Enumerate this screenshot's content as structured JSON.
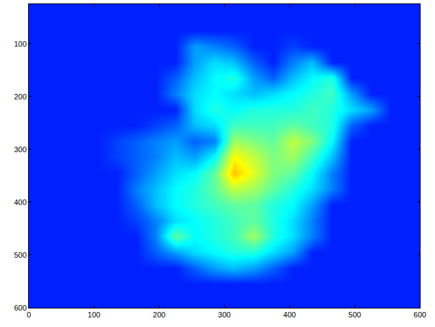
{
  "chart_data": {
    "type": "heatmap",
    "x": [
      15,
      45,
      75,
      105,
      135,
      165,
      195,
      225,
      255,
      285,
      315,
      345,
      375,
      405,
      435,
      465,
      495,
      525,
      555,
      585
    ],
    "y": [
      15,
      45,
      75,
      105,
      135,
      165,
      195,
      225,
      255,
      285,
      315,
      345,
      375,
      405,
      435,
      465,
      495,
      525,
      555,
      585
    ],
    "z": [
      [
        10,
        10,
        10,
        10,
        10,
        10,
        10,
        10,
        10,
        10,
        10,
        10,
        10,
        10,
        10,
        10,
        10,
        10,
        10,
        10
      ],
      [
        10,
        10,
        10,
        10,
        10,
        10,
        10,
        10,
        10,
        10,
        10,
        10,
        10,
        10,
        10,
        10,
        10,
        10,
        10,
        10
      ],
      [
        10,
        10,
        10,
        10,
        10,
        10,
        10,
        10,
        10,
        10,
        10,
        10,
        10,
        10,
        10,
        10,
        10,
        10,
        10,
        10
      ],
      [
        10,
        10,
        10,
        10,
        10,
        10,
        10,
        10,
        18,
        16,
        14,
        10,
        10,
        12,
        10,
        10,
        10,
        10,
        10,
        10
      ],
      [
        10,
        10,
        10,
        10,
        10,
        10,
        10,
        10,
        18,
        22,
        20,
        14,
        10,
        16,
        20,
        10,
        10,
        10,
        10,
        10
      ],
      [
        10,
        10,
        10,
        10,
        10,
        10,
        10,
        14,
        20,
        24,
        26,
        18,
        14,
        20,
        24,
        26,
        10,
        10,
        10,
        10
      ],
      [
        10,
        10,
        10,
        10,
        10,
        10,
        10,
        16,
        22,
        24,
        22,
        20,
        22,
        24,
        26,
        28,
        18,
        10,
        10,
        10
      ],
      [
        10,
        10,
        10,
        10,
        10,
        10,
        10,
        10,
        22,
        26,
        24,
        26,
        26,
        26,
        28,
        26,
        22,
        18,
        10,
        10
      ],
      [
        10,
        10,
        10,
        10,
        10,
        10,
        12,
        14,
        20,
        22,
        28,
        28,
        28,
        30,
        28,
        26,
        14,
        10,
        10,
        10
      ],
      [
        10,
        10,
        10,
        10,
        12,
        14,
        16,
        18,
        14,
        16,
        34,
        32,
        30,
        36,
        32,
        24,
        10,
        10,
        10,
        10
      ],
      [
        10,
        10,
        10,
        10,
        12,
        14,
        16,
        20,
        18,
        24,
        40,
        36,
        32,
        34,
        28,
        20,
        10,
        10,
        10,
        10
      ],
      [
        10,
        10,
        10,
        10,
        10,
        14,
        18,
        22,
        24,
        30,
        44,
        38,
        32,
        30,
        24,
        16,
        10,
        10,
        10,
        10
      ],
      [
        10,
        10,
        10,
        10,
        10,
        16,
        20,
        24,
        26,
        30,
        36,
        34,
        30,
        26,
        22,
        16,
        10,
        10,
        10,
        10
      ],
      [
        10,
        10,
        10,
        10,
        10,
        14,
        20,
        24,
        26,
        28,
        30,
        30,
        26,
        24,
        18,
        10,
        10,
        10,
        10,
        10
      ],
      [
        10,
        10,
        10,
        10,
        10,
        12,
        16,
        22,
        24,
        26,
        28,
        30,
        26,
        22,
        16,
        10,
        10,
        10,
        10,
        10
      ],
      [
        10,
        10,
        10,
        10,
        10,
        10,
        16,
        30,
        24,
        26,
        28,
        34,
        26,
        22,
        16,
        10,
        10,
        10,
        10,
        10
      ],
      [
        10,
        10,
        10,
        10,
        10,
        10,
        14,
        18,
        22,
        24,
        26,
        26,
        22,
        18,
        10,
        10,
        10,
        10,
        10,
        10
      ],
      [
        10,
        10,
        10,
        10,
        10,
        10,
        10,
        10,
        14,
        18,
        20,
        18,
        14,
        10,
        10,
        10,
        10,
        10,
        10,
        10
      ],
      [
        10,
        10,
        10,
        10,
        10,
        10,
        10,
        10,
        10,
        10,
        10,
        10,
        10,
        10,
        10,
        10,
        10,
        10,
        10,
        10
      ],
      [
        10,
        10,
        10,
        10,
        10,
        10,
        10,
        10,
        10,
        10,
        10,
        10,
        10,
        10,
        10,
        10,
        10,
        10,
        10,
        10
      ]
    ],
    "zlim": [
      0,
      64
    ],
    "xlim": [
      0,
      600
    ],
    "ylim": [
      600,
      25
    ],
    "xticks": [
      0,
      100,
      200,
      300,
      400,
      500,
      600
    ],
    "yticks": [
      100,
      200,
      300,
      400,
      500,
      600
    ]
  }
}
